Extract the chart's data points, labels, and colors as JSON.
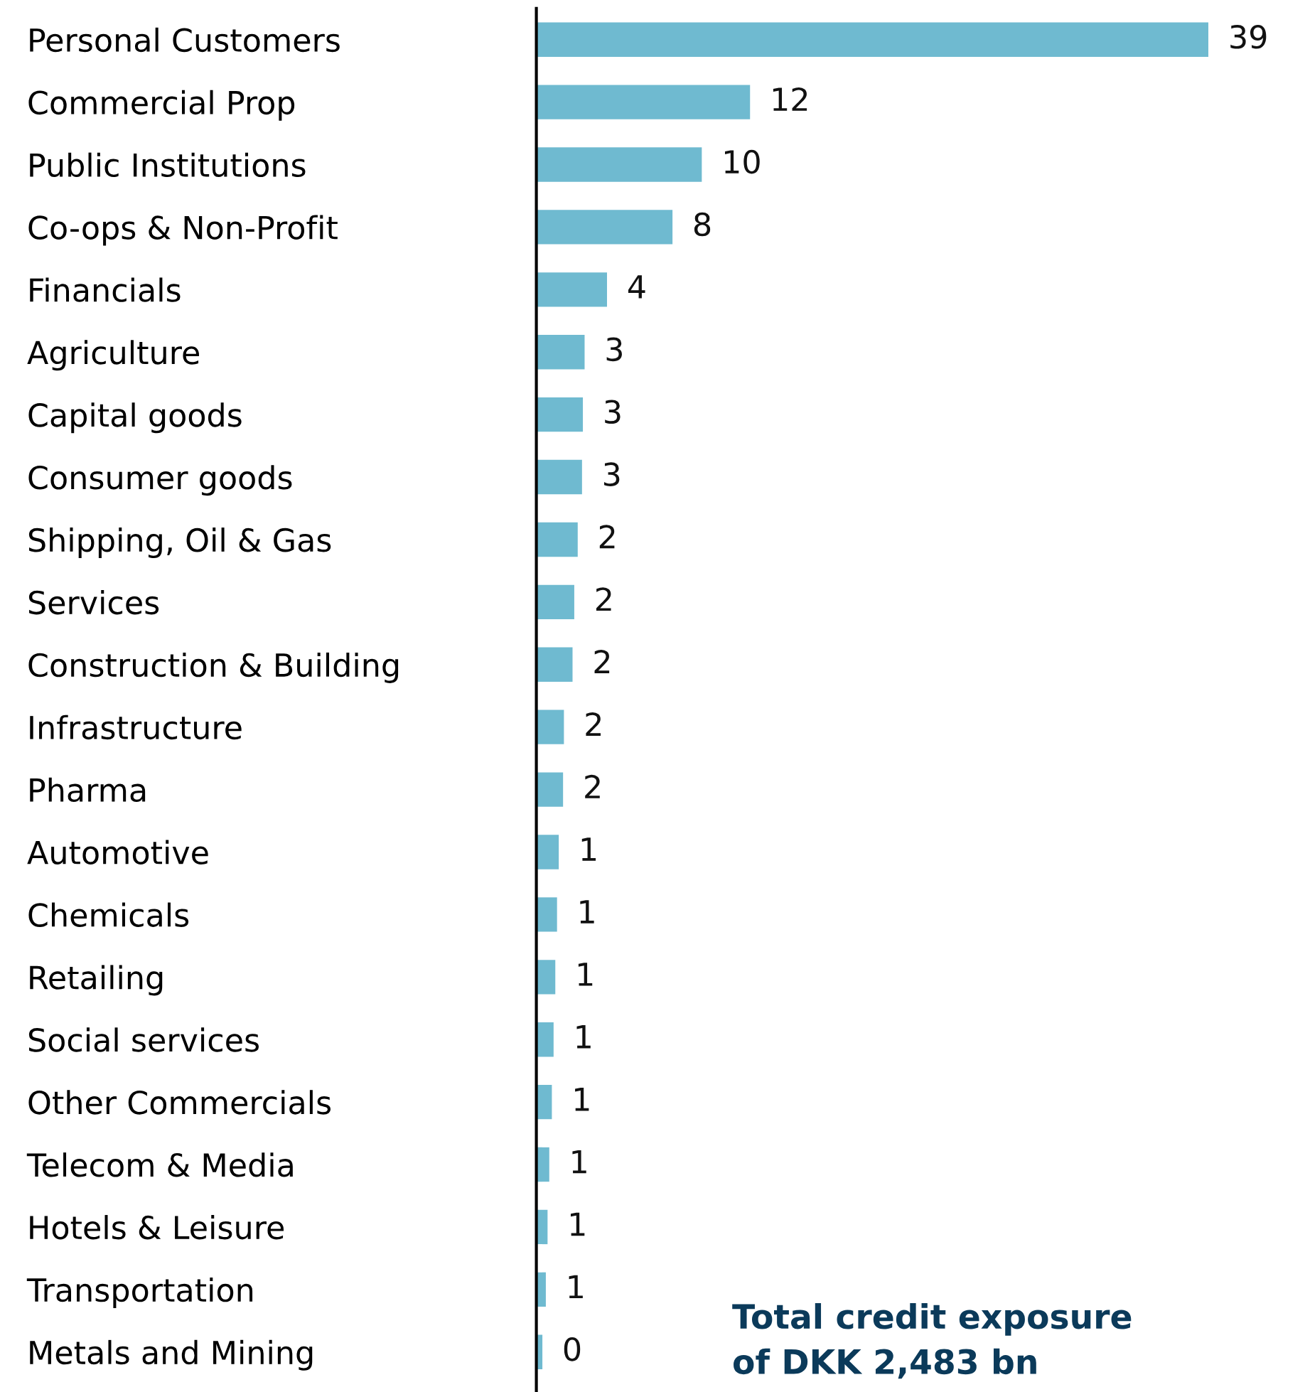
{
  "chart_data": {
    "type": "bar",
    "orientation": "horizontal",
    "categories": [
      "Personal Customers",
      "Commercial Prop",
      "Public Institutions",
      "Co-ops & Non-Profit",
      "Financials",
      "Agriculture",
      "Capital goods",
      "Consumer goods",
      "Shipping, Oil & Gas",
      "Services",
      "Construction & Building",
      "Infrastructure",
      "Pharma",
      "Automotive",
      "Chemicals",
      "Retailing",
      "Social services",
      "Other Commercials",
      "Telecom & Media",
      "Hotels & Leisure",
      "Transportation",
      "Metals and Mining"
    ],
    "values": [
      39,
      12.4,
      9.6,
      7.9,
      4.1,
      2.8,
      2.7,
      2.65,
      2.4,
      2.2,
      2.1,
      1.6,
      1.55,
      1.3,
      1.2,
      1.1,
      1.0,
      0.9,
      0.75,
      0.65,
      0.55,
      0.35
    ],
    "value_labels": [
      "39",
      "12",
      "10",
      "8",
      "4",
      "3",
      "3",
      "3",
      "2",
      "2",
      "2",
      "2",
      "2",
      "1",
      "1",
      "1",
      "1",
      "1",
      "1",
      "1",
      "1",
      "0"
    ],
    "color": "#6fbad0",
    "annotations": [
      "Total credit exposure\nof DKK 2,483 bn"
    ],
    "grid": false,
    "legend": false
  }
}
